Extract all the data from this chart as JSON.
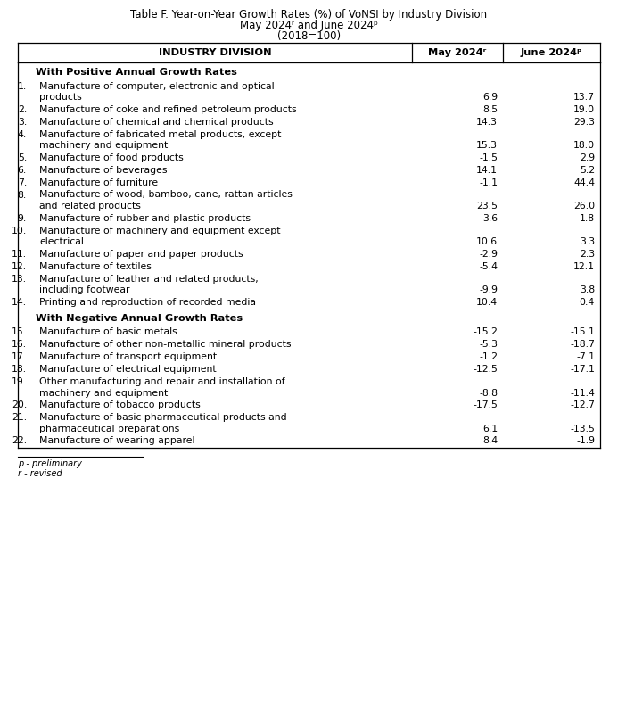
{
  "title_line1": "Table F. Year-on-Year Growth Rates (%) of VoNSI by Industry Division",
  "title_line2": "May 2024ʳ and June 2024ᵖ",
  "title_line3": "(2018=100)",
  "col_headers": [
    "INDUSTRY DIVISION",
    "May 2024ʳ",
    "June 2024ᵖ"
  ],
  "section1_header": "With Positive Annual Growth Rates",
  "section2_header": "With Negative Annual Growth Rates",
  "rows": [
    {
      "num": "1.",
      "label_line1": "Manufacture of computer, electronic and optical",
      "label_line2": "products",
      "may": "6.9",
      "june": "13.7"
    },
    {
      "num": "2.",
      "label_line1": "Manufacture of coke and refined petroleum products",
      "label_line2": null,
      "may": "8.5",
      "june": "19.0"
    },
    {
      "num": "3.",
      "label_line1": "Manufacture of chemical and chemical products",
      "label_line2": null,
      "may": "14.3",
      "june": "29.3"
    },
    {
      "num": "4.",
      "label_line1": "Manufacture of fabricated metal products, except",
      "label_line2": "machinery and equipment",
      "may": "15.3",
      "june": "18.0"
    },
    {
      "num": "5.",
      "label_line1": "Manufacture of food products",
      "label_line2": null,
      "may": "-1.5",
      "june": "2.9"
    },
    {
      "num": "6.",
      "label_line1": "Manufacture of beverages",
      "label_line2": null,
      "may": "14.1",
      "june": "5.2"
    },
    {
      "num": "7.",
      "label_line1": "Manufacture of furniture",
      "label_line2": null,
      "may": "-1.1",
      "june": "44.4"
    },
    {
      "num": "8.",
      "label_line1": "Manufacture of wood, bamboo, cane, rattan articles",
      "label_line2": "and related products",
      "may": "23.5",
      "june": "26.0"
    },
    {
      "num": "9.",
      "label_line1": "Manufacture of rubber and plastic products",
      "label_line2": null,
      "may": "3.6",
      "june": "1.8"
    },
    {
      "num": "10.",
      "label_line1": "Manufacture of machinery and equipment except",
      "label_line2": "electrical",
      "may": "10.6",
      "june": "3.3"
    },
    {
      "num": "11.",
      "label_line1": "Manufacture of paper and paper products",
      "label_line2": null,
      "may": "-2.9",
      "june": "2.3"
    },
    {
      "num": "12.",
      "label_line1": "Manufacture of textiles",
      "label_line2": null,
      "may": "-5.4",
      "june": "12.1"
    },
    {
      "num": "13.",
      "label_line1": "Manufacture of leather and related products,",
      "label_line2": "including footwear",
      "may": "-9.9",
      "june": "3.8"
    },
    {
      "num": "14.",
      "label_line1": "Printing and reproduction of recorded media",
      "label_line2": null,
      "may": "10.4",
      "june": "0.4"
    },
    {
      "num": "15.",
      "label_line1": "Manufacture of basic metals",
      "label_line2": null,
      "may": "-15.2",
      "june": "-15.1"
    },
    {
      "num": "16.",
      "label_line1": "Manufacture of other non-metallic mineral products",
      "label_line2": null,
      "may": "-5.3",
      "june": "-18.7"
    },
    {
      "num": "17.",
      "label_line1": "Manufacture of transport equipment",
      "label_line2": null,
      "may": "-1.2",
      "june": "-7.1"
    },
    {
      "num": "18.",
      "label_line1": "Manufacture of electrical equipment",
      "label_line2": null,
      "may": "-12.5",
      "june": "-17.1"
    },
    {
      "num": "19.",
      "label_line1": "Other manufacturing and repair and installation of",
      "label_line2": "machinery and equipment",
      "may": "-8.8",
      "june": "-11.4"
    },
    {
      "num": "20.",
      "label_line1": "Manufacture of tobacco products",
      "label_line2": null,
      "may": "-17.5",
      "june": "-12.7"
    },
    {
      "num": "21.",
      "label_line1": "Manufacture of basic pharmaceutical products and",
      "label_line2": "pharmaceutical preparations",
      "may": "6.1",
      "june": "-13.5"
    },
    {
      "num": "22.",
      "label_line1": "Manufacture of wearing apparel",
      "label_line2": null,
      "may": "8.4",
      "june": "-1.9"
    }
  ],
  "footnote1": "p - preliminary",
  "footnote2": "r - revised",
  "bg_color": "#ffffff",
  "border_color": "#000000",
  "text_color": "#000000"
}
